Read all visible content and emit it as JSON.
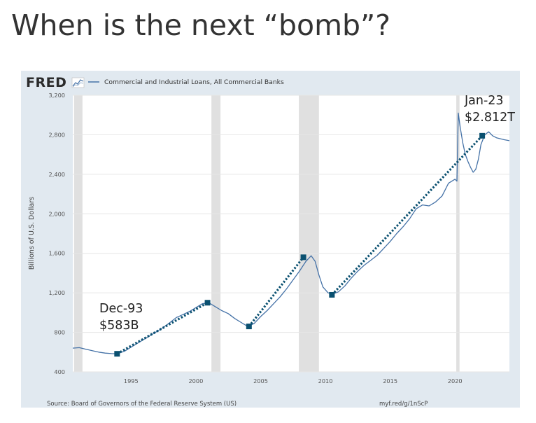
{
  "slide": {
    "title": "When is the next “bomb”?"
  },
  "colors": {
    "background": "#e1e9f0",
    "series_line": "#4572a7",
    "trend": "#0a5070",
    "recession": "#e0e0e0",
    "title_text": "#333333"
  },
  "chart_data": {
    "type": "line",
    "source_brand": "FRED",
    "brand_icon": "fred-graph-icon",
    "legend": "Commercial and Industrial Loans, All Commercial Banks",
    "ylabel": "Billions of U.S. Dollars",
    "xlabel": "",
    "ylim": [
      400,
      3200
    ],
    "xlim": [
      1990.5,
      2024.2
    ],
    "y_ticks": [
      3200,
      2800,
      2400,
      2000,
      1600,
      1200,
      800,
      400
    ],
    "x_ticks": [
      1995,
      2000,
      2005,
      2010,
      2015,
      2020
    ],
    "grid": "horizontal",
    "recessions": [
      [
        1990.6,
        1991.25
      ],
      [
        2001.2,
        2001.9
      ],
      [
        2007.95,
        2009.5
      ],
      [
        2020.1,
        2020.35
      ]
    ],
    "series": [
      {
        "name": "Commercial and Industrial Loans, All Commercial Banks",
        "x": [
          1990.5,
          1991.0,
          1991.5,
          1992.0,
          1992.5,
          1993.0,
          1993.5,
          1993.92,
          1994.5,
          1995.0,
          1995.5,
          1996.0,
          1996.5,
          1997.0,
          1997.5,
          1998.0,
          1998.5,
          1999.0,
          1999.5,
          2000.0,
          2000.5,
          2001.0,
          2001.5,
          2002.0,
          2002.5,
          2003.0,
          2003.5,
          2004.0,
          2004.5,
          2005.0,
          2005.5,
          2006.0,
          2006.5,
          2007.0,
          2007.5,
          2008.0,
          2008.5,
          2008.9,
          2009.2,
          2009.5,
          2009.8,
          2010.2,
          2010.6,
          2011.0,
          2011.5,
          2012.0,
          2012.5,
          2013.0,
          2013.5,
          2014.0,
          2014.5,
          2015.0,
          2015.5,
          2016.0,
          2016.5,
          2017.0,
          2017.5,
          2018.0,
          2018.5,
          2019.0,
          2019.5,
          2020.0,
          2020.15,
          2020.25,
          2020.4,
          2020.6,
          2020.8,
          2021.0,
          2021.2,
          2021.4,
          2021.6,
          2021.8,
          2022.0,
          2022.3,
          2022.6,
          2022.9,
          2023.2,
          2023.5,
          2023.8,
          2024.2
        ],
        "values": [
          640,
          645,
          630,
          615,
          600,
          590,
          585,
          583,
          610,
          650,
          690,
          730,
          770,
          810,
          850,
          900,
          950,
          980,
          1010,
          1050,
          1090,
          1100,
          1060,
          1020,
          990,
          940,
          900,
          860,
          890,
          960,
          1020,
          1090,
          1160,
          1240,
          1330,
          1420,
          1520,
          1575,
          1520,
          1380,
          1260,
          1200,
          1190,
          1210,
          1270,
          1350,
          1420,
          1480,
          1530,
          1580,
          1650,
          1720,
          1800,
          1870,
          1950,
          2050,
          2090,
          2080,
          2120,
          2180,
          2310,
          2350,
          2330,
          3020,
          2880,
          2720,
          2600,
          2530,
          2470,
          2420,
          2450,
          2550,
          2700,
          2800,
          2830,
          2790,
          2770,
          2760,
          2750,
          2740
        ]
      }
    ],
    "trend_segments": [
      [
        [
          1993.92,
          583
        ],
        [
          2000.9,
          1100
        ]
      ],
      [
        [
          2004.1,
          860
        ],
        [
          2008.3,
          1560
        ]
      ],
      [
        [
          2010.5,
          1180
        ],
        [
          2022.1,
          2790
        ]
      ]
    ],
    "markers": [
      {
        "x": 1993.92,
        "y": 583
      },
      {
        "x": 2000.9,
        "y": 1100
      },
      {
        "x": 2004.1,
        "y": 860
      },
      {
        "x": 2008.3,
        "y": 1560
      },
      {
        "x": 2010.5,
        "y": 1180
      },
      {
        "x": 2022.1,
        "y": 2790
      }
    ],
    "annotations": [
      {
        "line1": "Dec-93",
        "line2": "$583B"
      },
      {
        "line1": "Jan-23",
        "line2": "$2.812T"
      }
    ],
    "source_note": "Source: Board of Governors of the Federal Reserve System (US)",
    "url_note": "myf.red/g/1nScP"
  }
}
